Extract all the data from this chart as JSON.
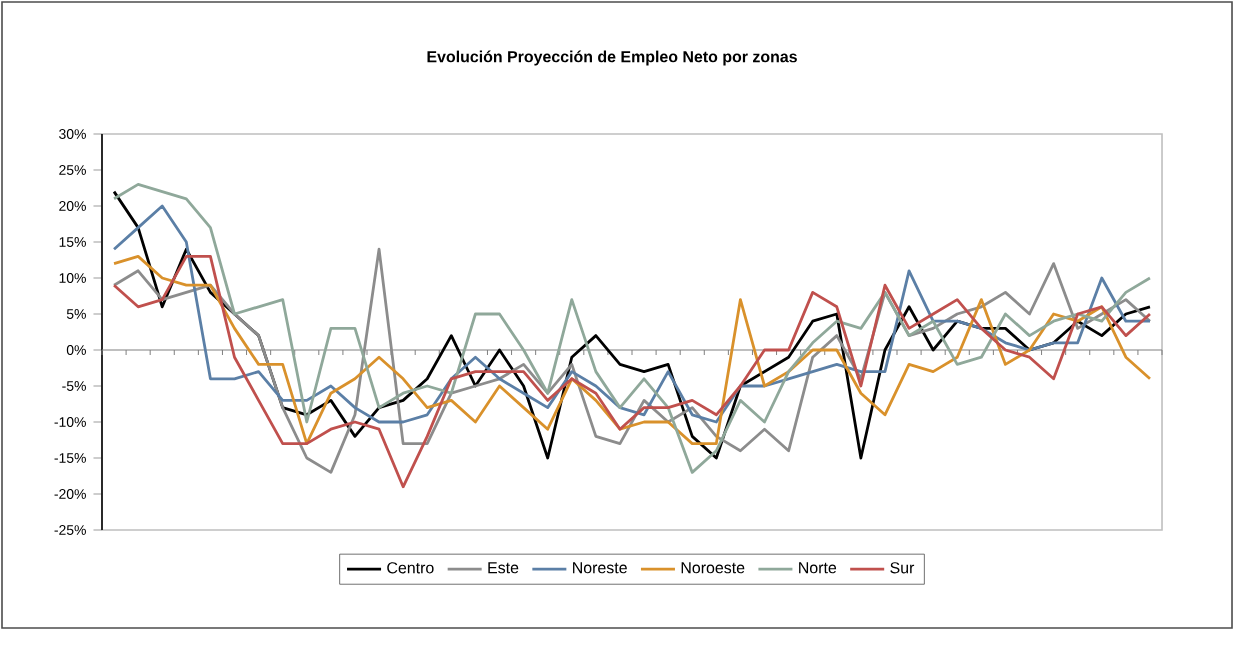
{
  "chart_data": {
    "type": "line",
    "title": "Evolución Proyección de Empleo Neto por zonas",
    "categories": [
      null,
      null,
      null,
      null,
      null,
      null,
      null,
      null,
      null,
      null,
      null,
      null,
      null,
      null,
      null,
      null,
      null,
      null,
      null,
      null,
      null,
      null,
      null,
      null,
      null,
      null,
      null,
      null,
      null,
      null,
      null,
      null,
      null,
      null,
      null,
      null,
      null,
      null,
      null,
      null,
      null,
      null,
      null,
      null
    ],
    "series": [
      {
        "name": "Centro",
        "color": "#000000",
        "values": [
          22,
          17,
          6,
          14,
          8,
          5,
          2,
          -8,
          -9,
          -7,
          -12,
          -8,
          -7,
          -4,
          2,
          -5,
          0,
          -5,
          -15,
          -1,
          2,
          -2,
          -3,
          -2,
          -12,
          -15,
          -5,
          -3,
          -1,
          4,
          5,
          -15,
          0,
          6,
          0,
          4,
          3,
          3,
          0,
          1,
          4,
          2,
          5,
          6
        ]
      },
      {
        "name": "Este",
        "color": "#8c8c8c",
        "values": [
          9,
          11,
          7,
          8,
          9,
          5,
          2,
          -8,
          -15,
          -17,
          -9,
          14,
          -13,
          -13,
          -6,
          -5,
          -4,
          -2,
          -6,
          -2,
          -12,
          -13,
          -7,
          -10,
          -8,
          -12,
          -14,
          -11,
          -14,
          -1,
          2,
          -4,
          8,
          2,
          3,
          5,
          6,
          8,
          5,
          12,
          3,
          5,
          7,
          4
        ]
      },
      {
        "name": "Noreste",
        "color": "#5b7fa6",
        "values": [
          14,
          17,
          20,
          15,
          -4,
          -4,
          -3,
          -7,
          -7,
          -5,
          -8,
          -10,
          -10,
          -9,
          -4,
          -1,
          -4,
          -6,
          -8,
          -3,
          -5,
          -8,
          -9,
          -3,
          -9,
          -10,
          -5,
          -5,
          -4,
          -3,
          -2,
          -3,
          -3,
          11,
          4,
          4,
          3,
          1,
          0,
          1,
          1,
          10,
          4,
          4
        ]
      },
      {
        "name": "Noroeste",
        "color": "#d9912b",
        "values": [
          12,
          13,
          10,
          9,
          9,
          3,
          -2,
          -2,
          -13,
          -6,
          -4,
          -1,
          -4,
          -8,
          -7,
          -10,
          -5,
          -8,
          -11,
          -4,
          -7,
          -11,
          -10,
          -10,
          -13,
          -13,
          7,
          -5,
          -3,
          0,
          0,
          -6,
          -9,
          -2,
          -3,
          -1,
          7,
          -2,
          0,
          5,
          4,
          6,
          -1,
          -4
        ]
      },
      {
        "name": "Norte",
        "color": "#8fa89a",
        "values": [
          21,
          23,
          22,
          21,
          17,
          5,
          6,
          7,
          -10,
          3,
          3,
          -8,
          -6,
          -5,
          -6,
          5,
          5,
          0,
          -6,
          7,
          -3,
          -8,
          -4,
          -8,
          -17,
          -14,
          -7,
          -10,
          -3,
          1,
          4,
          3,
          8,
          2,
          4,
          -2,
          -1,
          5,
          2,
          4,
          5,
          4,
          8,
          10
        ]
      },
      {
        "name": "Sur",
        "color": "#c0504d",
        "values": [
          9,
          6,
          7,
          13,
          13,
          -1,
          -7,
          -13,
          -13,
          -11,
          -10,
          -11,
          -19,
          -12,
          -4,
          -3,
          -3,
          -3,
          -7,
          -4,
          -6,
          -11,
          -8,
          -8,
          -7,
          -9,
          -5,
          0,
          0,
          8,
          6,
          -5,
          9,
          3,
          5,
          7,
          3,
          0,
          -1,
          -4,
          5,
          6,
          2,
          5
        ]
      }
    ],
    "ylim": [
      -25,
      30
    ],
    "yticks": [
      {
        "value": -25,
        "label": "-25%"
      },
      {
        "value": -20,
        "label": "-20%"
      },
      {
        "value": -15,
        "label": "-15%"
      },
      {
        "value": -10,
        "label": "-10%"
      },
      {
        "value": -5,
        "label": "-5%"
      },
      {
        "value": 0,
        "label": "0%"
      },
      {
        "value": 5,
        "label": "5%"
      },
      {
        "value": 10,
        "label": "10%"
      },
      {
        "value": 15,
        "label": "15%"
      },
      {
        "value": 20,
        "label": "20%"
      },
      {
        "value": 25,
        "label": "25%"
      },
      {
        "value": 30,
        "label": "30%"
      }
    ],
    "ref_lines": [
      {
        "axis": "y",
        "value": 0,
        "color": "#808080"
      }
    ],
    "tick_labels": "y",
    "legend": "bottom",
    "marker": "none",
    "line_style": "solid"
  }
}
